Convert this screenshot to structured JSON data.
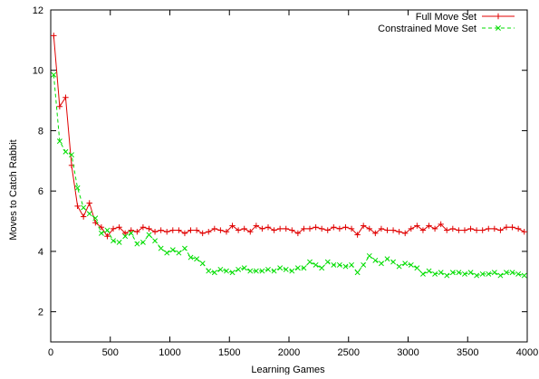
{
  "chart_data": {
    "type": "line",
    "title": "",
    "xlabel": "Learning Games",
    "ylabel": "Moves to Catch Rabbit",
    "xlim": [
      0,
      4000
    ],
    "ylim": [
      1,
      12
    ],
    "xticks": [
      "0",
      "500",
      "1000",
      "1500",
      "2000",
      "2500",
      "3000",
      "3500",
      "4000"
    ],
    "yticks": [
      "2",
      "4",
      "6",
      "8",
      "10",
      "12"
    ],
    "grid": false,
    "legend_position": "top-right",
    "series": [
      {
        "name": "Full Move Set",
        "color": "#e00000",
        "line_style": "solid",
        "marker": "plus",
        "x": [
          25,
          75,
          125,
          175,
          225,
          275,
          325,
          375,
          425,
          475,
          525,
          575,
          625,
          675,
          725,
          775,
          825,
          875,
          925,
          975,
          1025,
          1075,
          1125,
          1175,
          1225,
          1275,
          1325,
          1375,
          1425,
          1475,
          1525,
          1575,
          1625,
          1675,
          1725,
          1775,
          1825,
          1875,
          1925,
          1975,
          2025,
          2075,
          2125,
          2175,
          2225,
          2275,
          2325,
          2375,
          2425,
          2475,
          2525,
          2575,
          2625,
          2675,
          2725,
          2775,
          2825,
          2875,
          2925,
          2975,
          3025,
          3075,
          3125,
          3175,
          3225,
          3275,
          3325,
          3375,
          3425,
          3475,
          3525,
          3575,
          3625,
          3675,
          3725,
          3775,
          3825,
          3875,
          3925,
          3975
        ],
        "y": [
          11.15,
          8.8,
          9.1,
          6.85,
          5.5,
          5.15,
          5.6,
          4.95,
          4.8,
          4.5,
          4.75,
          4.8,
          4.6,
          4.7,
          4.65,
          4.8,
          4.75,
          4.65,
          4.7,
          4.65,
          4.7,
          4.7,
          4.6,
          4.7,
          4.7,
          4.6,
          4.65,
          4.75,
          4.7,
          4.65,
          4.85,
          4.7,
          4.75,
          4.65,
          4.85,
          4.75,
          4.8,
          4.7,
          4.75,
          4.75,
          4.7,
          4.6,
          4.75,
          4.75,
          4.8,
          4.75,
          4.7,
          4.8,
          4.75,
          4.8,
          4.75,
          4.55,
          4.85,
          4.75,
          4.6,
          4.75,
          4.7,
          4.7,
          4.65,
          4.6,
          4.75,
          4.85,
          4.7,
          4.85,
          4.75,
          4.9,
          4.7,
          4.75,
          4.7,
          4.7,
          4.75,
          4.7,
          4.7,
          4.75,
          4.75,
          4.7,
          4.8,
          4.8,
          4.75,
          4.65
        ]
      },
      {
        "name": "Constrained Move Set",
        "color": "#00dd00",
        "line_style": "dashed",
        "marker": "x",
        "x": [
          25,
          75,
          125,
          175,
          225,
          275,
          325,
          375,
          425,
          475,
          525,
          575,
          625,
          675,
          725,
          775,
          825,
          875,
          925,
          975,
          1025,
          1075,
          1125,
          1175,
          1225,
          1275,
          1325,
          1375,
          1425,
          1475,
          1525,
          1575,
          1625,
          1675,
          1725,
          1775,
          1825,
          1875,
          1925,
          1975,
          2025,
          2075,
          2125,
          2175,
          2225,
          2275,
          2325,
          2375,
          2425,
          2475,
          2525,
          2575,
          2625,
          2675,
          2725,
          2775,
          2825,
          2875,
          2925,
          2975,
          3025,
          3075,
          3125,
          3175,
          3225,
          3275,
          3325,
          3375,
          3425,
          3475,
          3525,
          3575,
          3625,
          3675,
          3725,
          3775,
          3825,
          3875,
          3925,
          3975
        ],
        "y": [
          9.85,
          7.65,
          7.3,
          7.2,
          6.1,
          5.45,
          5.25,
          5.1,
          4.6,
          4.7,
          4.35,
          4.3,
          4.5,
          4.6,
          4.25,
          4.3,
          4.55,
          4.35,
          4.1,
          3.95,
          4.05,
          3.95,
          4.1,
          3.8,
          3.75,
          3.6,
          3.35,
          3.3,
          3.4,
          3.35,
          3.3,
          3.4,
          3.45,
          3.35,
          3.35,
          3.35,
          3.4,
          3.35,
          3.45,
          3.4,
          3.35,
          3.45,
          3.45,
          3.65,
          3.55,
          3.45,
          3.65,
          3.55,
          3.55,
          3.5,
          3.55,
          3.3,
          3.55,
          3.85,
          3.7,
          3.6,
          3.75,
          3.65,
          3.5,
          3.6,
          3.55,
          3.45,
          3.25,
          3.35,
          3.25,
          3.3,
          3.2,
          3.3,
          3.3,
          3.25,
          3.3,
          3.2,
          3.25,
          3.25,
          3.3,
          3.2,
          3.3,
          3.3,
          3.25,
          3.2
        ]
      }
    ]
  }
}
